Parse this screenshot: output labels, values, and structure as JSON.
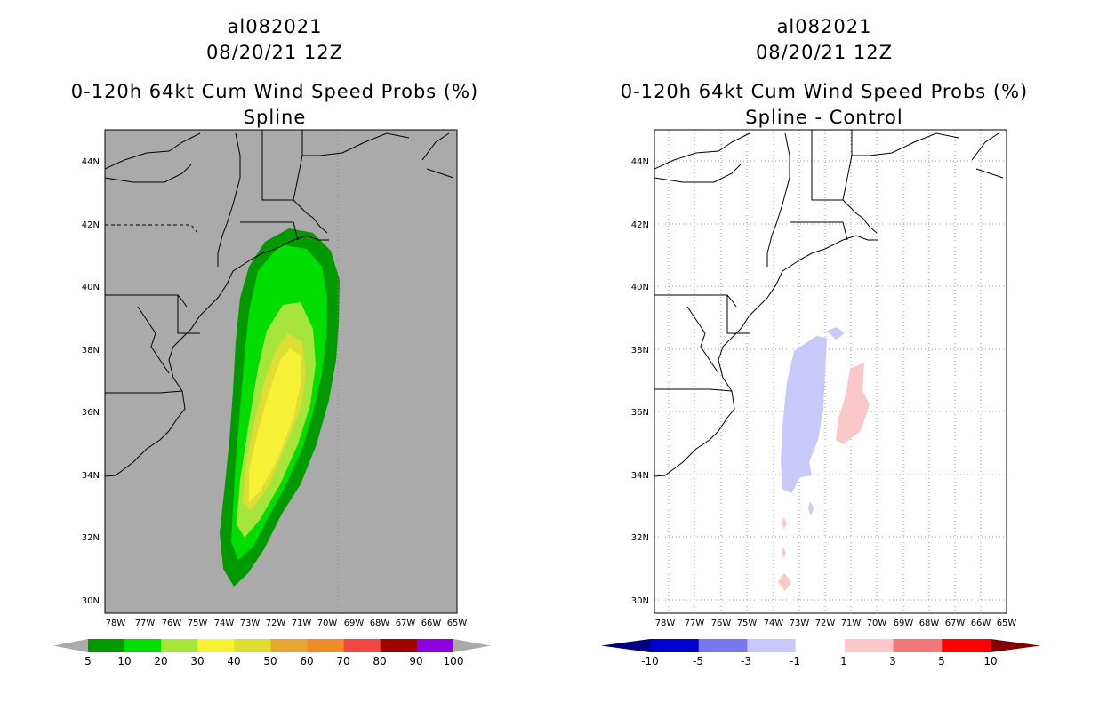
{
  "left": {
    "title_lines": [
      "al082021",
      "08/20/21 12Z",
      "0-120h 64kt Cum Wind Speed Probs (%)",
      "Spline"
    ],
    "lat_labels": [
      "44N",
      "42N",
      "40N",
      "38N",
      "36N",
      "34N",
      "32N",
      "30N"
    ],
    "lon_labels": [
      "78W",
      "77W",
      "76W",
      "75W",
      "74W",
      "73W",
      "72W",
      "71W",
      "70W",
      "69W",
      "68W",
      "67W",
      "66W",
      "65W"
    ],
    "colorbar": {
      "labels": [
        "5",
        "10",
        "20",
        "30",
        "40",
        "50",
        "60",
        "70",
        "80",
        "90",
        "100"
      ],
      "colors": [
        "#009900",
        "#00dd00",
        "#a6e63c",
        "#f6f036",
        "#dddd33",
        "#e6a633",
        "#f08c28",
        "#f04646",
        "#a00000",
        "#8c00dc"
      ],
      "end_color": "#aaaaaa"
    },
    "background_color": "#aaaaaa"
  },
  "right": {
    "title_lines": [
      "al082021",
      "08/20/21 12Z",
      "0-120h 64kt Cum Wind Speed Probs (%)",
      "Spline - Control"
    ],
    "lat_labels": [
      "44N",
      "42N",
      "40N",
      "38N",
      "36N",
      "34N",
      "32N",
      "30N"
    ],
    "lon_labels": [
      "78W",
      "77W",
      "76W",
      "75W",
      "74W",
      "73W",
      "72W",
      "71W",
      "70W",
      "69W",
      "68W",
      "67W",
      "66W",
      "65W"
    ],
    "colorbar": {
      "labels": [
        "-10",
        "-5",
        "-3",
        "-1",
        "1",
        "3",
        "5",
        "10"
      ],
      "colors": [
        "#0000cc",
        "#7878f0",
        "#c8c8fa",
        "#ffffff",
        "#fac8c8",
        "#f07878",
        "#ff0000"
      ],
      "end_low": "#000080",
      "end_high": "#800000"
    }
  }
}
